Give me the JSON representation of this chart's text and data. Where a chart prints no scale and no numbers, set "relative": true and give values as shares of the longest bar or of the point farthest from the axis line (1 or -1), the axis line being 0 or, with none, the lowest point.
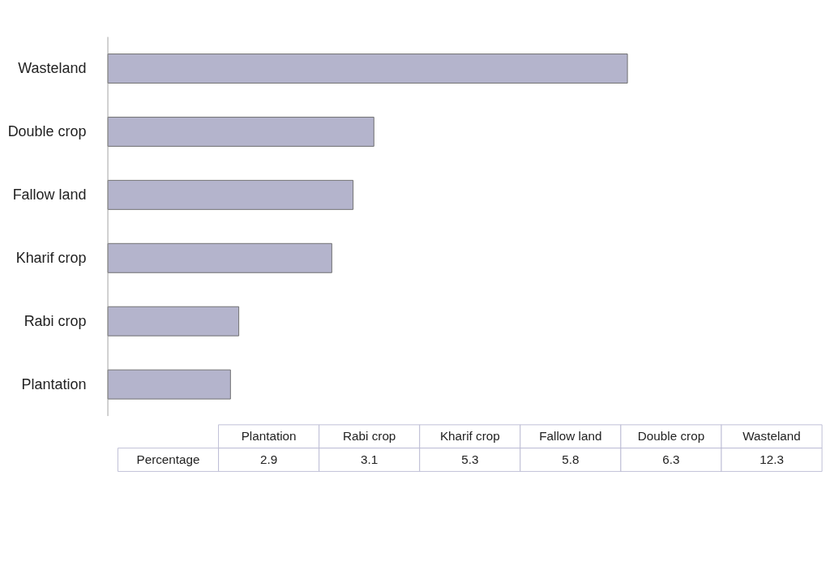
{
  "chart_data": [
    {
      "type": "bar",
      "orientation": "horizontal",
      "relative": true,
      "categories": [
        "Wasteland",
        "Double crop",
        "Fallow land",
        "Kharif crop",
        "Rabi crop",
        "Plantation"
      ],
      "series": [
        {
          "color": "#b4b4cc",
          "values": [
            1,
            0.512,
            0.472,
            0.431,
            0.252,
            0.236
          ]
        }
      ]
    },
    {
      "type": "other",
      "categories": [
        "Plantation",
        "Rabi crop",
        "Kharif crop",
        "Fallow land",
        "Double crop",
        "Wasteland"
      ],
      "series": [
        {
          "name": "Percentage",
          "values": [
            2.9,
            3.1,
            5.3,
            5.8,
            6.3,
            12.3
          ]
        }
      ],
      "data_labels": true
    }
  ]
}
